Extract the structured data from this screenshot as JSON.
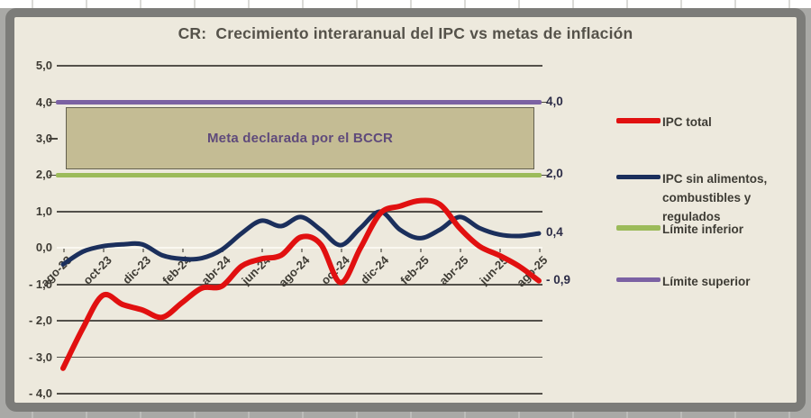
{
  "title": "CR:  Crecimiento interaranual del IPC vs metas de inflación",
  "annotation_box": {
    "label": "Meta declarada por el BCCR"
  },
  "y_axis": {
    "tick_labels": [
      "5,0",
      "4,0",
      "3,0",
      "2,0",
      "1,0",
      "0,0",
      "- 1,0",
      "- 2,0",
      "- 3,0",
      "- 4,0"
    ],
    "tick_values": [
      5,
      4,
      3,
      2,
      1,
      0,
      -1,
      -2,
      -3,
      -4
    ]
  },
  "x_axis": {
    "tick_labels": [
      "ago-23",
      "oct-23",
      "dic-23",
      "feb-24",
      "abr-24",
      "jun-24",
      "ago-24",
      "oct-24",
      "dic-24",
      "feb-25",
      "abr-25",
      "jun-25",
      "ago-25"
    ]
  },
  "right_labels": [
    {
      "text": "4,0",
      "value": 4.0
    },
    {
      "text": "2,0",
      "value": 2.0
    },
    {
      "text": "0,4",
      "value": 0.4
    },
    {
      "text": "- 0,9",
      "value": -0.9
    }
  ],
  "legend": [
    {
      "label": "IPC total",
      "lines": [
        "IPC total"
      ],
      "color": "#e11010",
      "thickness": 6
    },
    {
      "label": "IPC sin alimentos, combustibles y regulados",
      "lines": [
        "IPC sin alimentos,",
        "combustibles y regulados"
      ],
      "color": "#1b2f5c",
      "thickness": 5
    },
    {
      "label": "Límite inferior",
      "lines": [
        "Límite inferior"
      ],
      "color": "#9cbb5a",
      "thickness": 6
    },
    {
      "label": "Límite superior",
      "lines": [
        "Límite superior"
      ],
      "color": "#7b61a3",
      "thickness": 5
    }
  ],
  "chart_data": {
    "type": "line",
    "title": "CR:  Crecimiento interaranual del IPC vs metas de inflación",
    "x": [
      "ago-23",
      "sep-23",
      "oct-23",
      "nov-23",
      "dic-23",
      "ene-24",
      "feb-24",
      "mar-24",
      "abr-24",
      "may-24",
      "jun-24",
      "jul-24",
      "ago-24",
      "sep-24",
      "oct-24",
      "nov-24",
      "dic-24",
      "ene-25",
      "feb-25",
      "mar-25",
      "abr-25",
      "may-25",
      "jun-25",
      "jul-25",
      "ago-25"
    ],
    "series": [
      {
        "name": "IPC total",
        "color": "#e11010",
        "values": [
          -3.3,
          -2.2,
          -1.3,
          -1.55,
          -1.7,
          -1.9,
          -1.5,
          -1.1,
          -1.05,
          -0.5,
          -0.3,
          -0.2,
          0.3,
          0.1,
          -0.95,
          0.0,
          0.95,
          1.15,
          1.3,
          1.2,
          0.55,
          0.05,
          -0.2,
          -0.5,
          -0.9
        ]
      },
      {
        "name": "IPC sin alimentos, combustibles y regulados",
        "color": "#1b2f5c",
        "values": [
          -0.45,
          -0.1,
          0.05,
          0.1,
          0.1,
          -0.2,
          -0.3,
          -0.28,
          -0.05,
          0.4,
          0.75,
          0.6,
          0.85,
          0.5,
          0.08,
          0.55,
          1.0,
          0.5,
          0.27,
          0.5,
          0.85,
          0.55,
          0.37,
          0.33,
          0.4
        ]
      },
      {
        "name": "Límite inferior",
        "color": "#9cbb5a",
        "constant": 2.0
      },
      {
        "name": "Límite superior",
        "color": "#7b61a3",
        "constant": 4.0
      }
    ],
    "ylim": [
      -4,
      5
    ],
    "grid": true,
    "legend_position": "right",
    "annotation": "Meta declarada por el BCCR"
  },
  "colors": {
    "ipc_total": "#e11010",
    "ipc_sin_alimentos": "#1b2f5c",
    "limite_inferior": "#9cbb5a",
    "limite_superior": "#7b61a3",
    "meta_box_fill": "#c4bc94",
    "meta_box_text": "#5f4a7b",
    "chart_background": "#ede9dd",
    "frame_border": "#7c7c79"
  }
}
